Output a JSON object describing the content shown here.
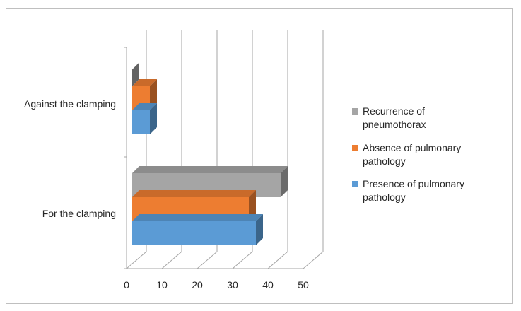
{
  "chart_data": {
    "type": "bar",
    "orientation": "horizontal",
    "three_d": true,
    "categories": [
      "For the clamping",
      "Against the clamping"
    ],
    "series": [
      {
        "name": "Presence of pulmonary pathology",
        "color": "#5B9BD5",
        "values": [
          35,
          5
        ]
      },
      {
        "name": "Absence of pulmonary pathology",
        "color": "#ED7D31",
        "values": [
          33,
          5
        ]
      },
      {
        "name": "Recurrence of pneumothorax",
        "color": "#A5A5A5",
        "values": [
          42,
          0
        ]
      }
    ],
    "xlim": [
      0,
      50
    ],
    "xticks": [
      0,
      10,
      20,
      30,
      40,
      50
    ],
    "grid": true,
    "legend_position": "right"
  }
}
